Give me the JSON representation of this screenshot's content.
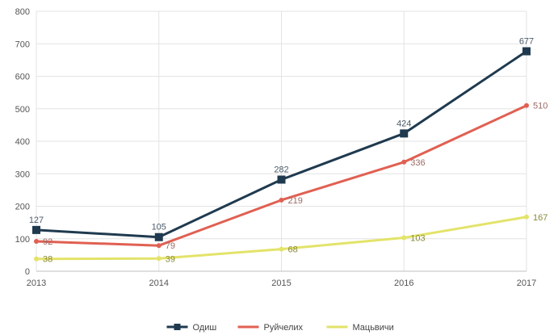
{
  "chart_data": {
    "type": "line",
    "title": "",
    "xlabel": "",
    "ylabel": "",
    "x": [
      "2013",
      "2014",
      "2015",
      "2016",
      "2017"
    ],
    "ylim": [
      0,
      800
    ],
    "yticks": [
      "0",
      "100",
      "200",
      "300",
      "400",
      "500",
      "600",
      "700",
      "800"
    ],
    "grid": true,
    "legend_position": "bottom",
    "series": [
      {
        "name": "Одиш",
        "color": "#1f3a4f",
        "values": [
          127,
          105,
          282,
          424,
          677
        ],
        "labels": [
          "127",
          "105",
          "282",
          "424",
          "677"
        ]
      },
      {
        "name": "Руйчелих",
        "color": "#e06052",
        "values": [
          92,
          79,
          219,
          336,
          510
        ],
        "labels": [
          "92",
          "79",
          "219",
          "336",
          "510"
        ]
      },
      {
        "name": "Мацьвичи",
        "color": "#e3e36a",
        "values": [
          38,
          39,
          68,
          103,
          167
        ],
        "labels": [
          "38",
          "39",
          "68",
          "103",
          "167"
        ]
      }
    ]
  }
}
